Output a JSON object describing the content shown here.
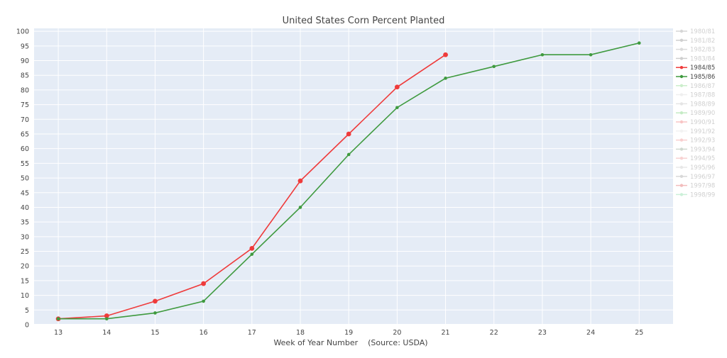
{
  "chart_data": {
    "type": "line",
    "title": "United States Corn Percent Planted",
    "xlabel": "Week of Year Number    (Source: USDA)",
    "ylabel": "",
    "x_ticks": [
      13,
      14,
      15,
      16,
      17,
      18,
      19,
      20,
      21,
      22,
      23,
      24,
      25
    ],
    "y_ticks": [
      0,
      5,
      10,
      15,
      20,
      25,
      30,
      35,
      40,
      45,
      50,
      55,
      60,
      65,
      70,
      75,
      80,
      85,
      90,
      95,
      100
    ],
    "xlim": [
      12.5,
      25.7
    ],
    "ylim": [
      0,
      101
    ],
    "grid": true,
    "legend_position": "right",
    "series": [
      {
        "name": "1984/85",
        "color": "#EF3B3B",
        "marker": "circle",
        "points": [
          [
            13,
            2
          ],
          [
            14,
            3
          ],
          [
            15,
            8
          ],
          [
            16,
            14
          ],
          [
            17,
            26
          ],
          [
            18,
            49
          ],
          [
            19,
            65
          ],
          [
            20,
            81
          ],
          [
            21,
            92
          ]
        ]
      },
      {
        "name": "1985/86",
        "color": "#3F9A3F",
        "marker": "small",
        "points": [
          [
            13,
            2
          ],
          [
            14,
            2
          ],
          [
            15,
            4
          ],
          [
            16,
            8
          ],
          [
            17,
            24
          ],
          [
            18,
            40
          ],
          [
            19,
            58
          ],
          [
            20,
            74
          ],
          [
            21,
            84
          ],
          [
            22,
            88
          ],
          [
            23,
            92
          ],
          [
            24,
            92
          ],
          [
            25,
            96
          ]
        ]
      }
    ],
    "legend": [
      {
        "label": "1980/81",
        "color": "#9a9a9a",
        "active": false
      },
      {
        "label": "1981/82",
        "color": "#8a8a8a",
        "active": false
      },
      {
        "label": "1982/83",
        "color": "#a8a8a8",
        "active": false
      },
      {
        "label": "1983/84",
        "color": "#8a8a8a",
        "active": false
      },
      {
        "label": "1984/85",
        "color": "#EF3B3B",
        "active": true
      },
      {
        "label": "1985/86",
        "color": "#3F9A3F",
        "active": true
      },
      {
        "label": "1986/87",
        "color": "#7fd67f",
        "active": false
      },
      {
        "label": "1987/88",
        "color": "#d8d8d8",
        "active": false
      },
      {
        "label": "1988/89",
        "color": "#c0c0c0",
        "active": false
      },
      {
        "label": "1989/90",
        "color": "#6fcf6f",
        "active": false
      },
      {
        "label": "1990/91",
        "color": "#f07070",
        "active": false
      },
      {
        "label": "1991/92",
        "color": "#e0e0e0",
        "active": false
      },
      {
        "label": "1992/93",
        "color": "#f08a8a",
        "active": false
      },
      {
        "label": "1993/94",
        "color": "#8aa08a",
        "active": false
      },
      {
        "label": "1994/95",
        "color": "#f09090",
        "active": false
      },
      {
        "label": "1995/96",
        "color": "#c8c8c8",
        "active": false
      },
      {
        "label": "1996/97",
        "color": "#a0a0a0",
        "active": false
      },
      {
        "label": "1997/98",
        "color": "#e05a5a",
        "active": false
      },
      {
        "label": "1998/99",
        "color": "#7fdca0",
        "active": false
      }
    ]
  }
}
